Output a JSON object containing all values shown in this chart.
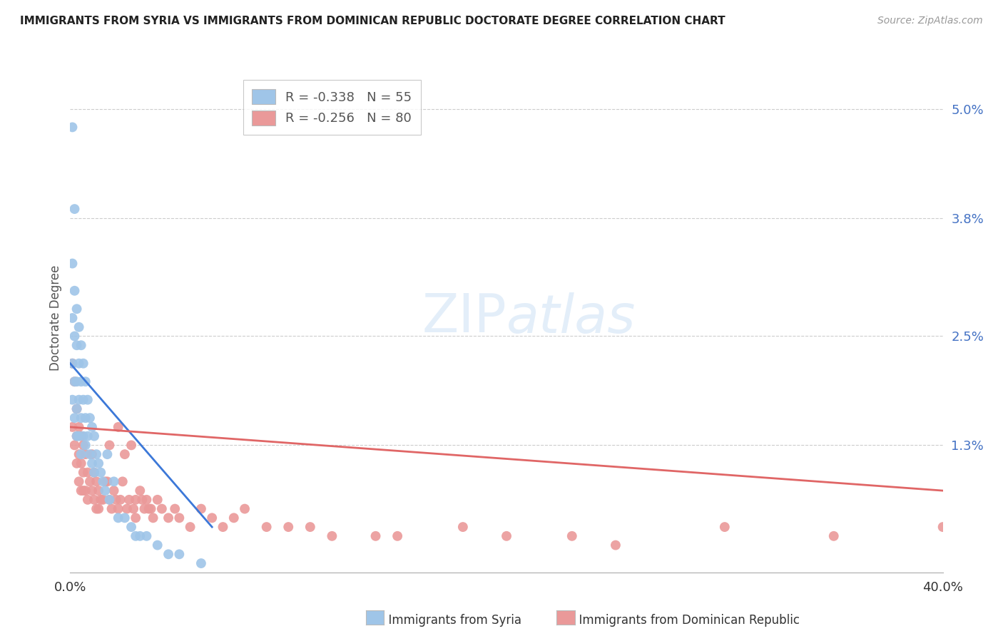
{
  "title": "IMMIGRANTS FROM SYRIA VS IMMIGRANTS FROM DOMINICAN REPUBLIC DOCTORATE DEGREE CORRELATION CHART",
  "source": "Source: ZipAtlas.com",
  "ylabel": "Doctorate Degree",
  "yticks": [
    "5.0%",
    "3.8%",
    "2.5%",
    "1.3%"
  ],
  "ytick_vals": [
    0.05,
    0.038,
    0.025,
    0.013
  ],
  "xlim": [
    0.0,
    0.4
  ],
  "ylim": [
    -0.001,
    0.055
  ],
  "syria_color": "#9fc5e8",
  "dr_color": "#ea9999",
  "trendline_syria_color": "#3c78d8",
  "trendline_dr_color": "#e06666",
  "syria_R": -0.338,
  "syria_N": 55,
  "dr_R": -0.256,
  "dr_N": 80,
  "syria_trend_x": [
    0.0,
    0.065
  ],
  "syria_trend_y": [
    0.022,
    0.004
  ],
  "dr_trend_x": [
    0.0,
    0.4
  ],
  "dr_trend_y": [
    0.015,
    0.008
  ],
  "syria_x": [
    0.001,
    0.001,
    0.001,
    0.001,
    0.001,
    0.002,
    0.002,
    0.002,
    0.002,
    0.002,
    0.003,
    0.003,
    0.003,
    0.003,
    0.003,
    0.004,
    0.004,
    0.004,
    0.004,
    0.005,
    0.005,
    0.005,
    0.005,
    0.006,
    0.006,
    0.006,
    0.007,
    0.007,
    0.007,
    0.008,
    0.008,
    0.009,
    0.009,
    0.01,
    0.01,
    0.011,
    0.011,
    0.012,
    0.013,
    0.014,
    0.015,
    0.016,
    0.017,
    0.018,
    0.02,
    0.022,
    0.025,
    0.028,
    0.03,
    0.032,
    0.035,
    0.04,
    0.045,
    0.05,
    0.06
  ],
  "syria_y": [
    0.048,
    0.033,
    0.027,
    0.022,
    0.018,
    0.039,
    0.03,
    0.025,
    0.02,
    0.016,
    0.028,
    0.024,
    0.02,
    0.017,
    0.014,
    0.026,
    0.022,
    0.018,
    0.014,
    0.024,
    0.02,
    0.016,
    0.012,
    0.022,
    0.018,
    0.014,
    0.02,
    0.016,
    0.013,
    0.018,
    0.014,
    0.016,
    0.012,
    0.015,
    0.011,
    0.014,
    0.01,
    0.012,
    0.011,
    0.01,
    0.009,
    0.008,
    0.012,
    0.007,
    0.009,
    0.005,
    0.005,
    0.004,
    0.003,
    0.003,
    0.003,
    0.002,
    0.001,
    0.001,
    0.0
  ],
  "dr_x": [
    0.001,
    0.001,
    0.002,
    0.002,
    0.003,
    0.003,
    0.003,
    0.004,
    0.004,
    0.004,
    0.005,
    0.005,
    0.005,
    0.006,
    0.006,
    0.006,
    0.007,
    0.007,
    0.008,
    0.008,
    0.009,
    0.01,
    0.01,
    0.011,
    0.011,
    0.012,
    0.012,
    0.013,
    0.013,
    0.014,
    0.015,
    0.016,
    0.017,
    0.018,
    0.018,
    0.019,
    0.02,
    0.021,
    0.022,
    0.022,
    0.023,
    0.024,
    0.025,
    0.026,
    0.027,
    0.028,
    0.029,
    0.03,
    0.03,
    0.032,
    0.033,
    0.034,
    0.035,
    0.036,
    0.037,
    0.038,
    0.04,
    0.042,
    0.045,
    0.048,
    0.05,
    0.055,
    0.06,
    0.065,
    0.07,
    0.075,
    0.08,
    0.09,
    0.1,
    0.11,
    0.12,
    0.14,
    0.15,
    0.18,
    0.2,
    0.23,
    0.25,
    0.3,
    0.35,
    0.4
  ],
  "dr_y": [
    0.022,
    0.015,
    0.02,
    0.013,
    0.017,
    0.014,
    0.011,
    0.015,
    0.012,
    0.009,
    0.014,
    0.011,
    0.008,
    0.013,
    0.01,
    0.008,
    0.012,
    0.008,
    0.01,
    0.007,
    0.009,
    0.012,
    0.008,
    0.01,
    0.007,
    0.009,
    0.006,
    0.008,
    0.006,
    0.007,
    0.007,
    0.009,
    0.009,
    0.013,
    0.007,
    0.006,
    0.008,
    0.007,
    0.015,
    0.006,
    0.007,
    0.009,
    0.012,
    0.006,
    0.007,
    0.013,
    0.006,
    0.007,
    0.005,
    0.008,
    0.007,
    0.006,
    0.007,
    0.006,
    0.006,
    0.005,
    0.007,
    0.006,
    0.005,
    0.006,
    0.005,
    0.004,
    0.006,
    0.005,
    0.004,
    0.005,
    0.006,
    0.004,
    0.004,
    0.004,
    0.003,
    0.003,
    0.003,
    0.004,
    0.003,
    0.003,
    0.002,
    0.004,
    0.003,
    0.004
  ]
}
